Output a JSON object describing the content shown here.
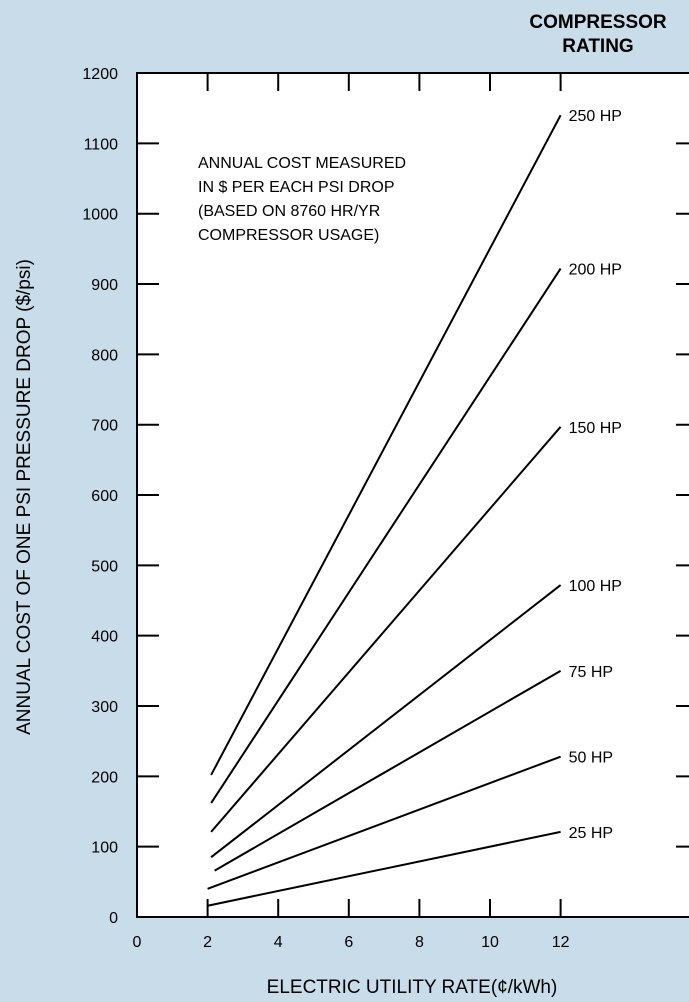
{
  "chart_data": {
    "type": "line",
    "header": [
      "COMPRESSOR",
      "RATING"
    ],
    "annotation": [
      "ANNUAL COST MEASURED",
      "IN $ PER EACH PSI DROP",
      "(BASED ON 8760 HR/YR",
      "COMPRESSOR USAGE)"
    ],
    "xlabel": "ELECTRIC UTILITY RATE(¢/kWh)",
    "ylabel": "ANNUAL COST OF ONE PSI PRESSURE DROP ($/psi)",
    "xlim": [
      0,
      16
    ],
    "ylim": [
      0,
      1200
    ],
    "xticks": [
      0,
      2,
      4,
      6,
      8,
      10,
      12
    ],
    "yticks": [
      0,
      100,
      200,
      300,
      400,
      500,
      600,
      700,
      800,
      900,
      1000,
      1100,
      1200
    ],
    "grid": false,
    "legend": "line-end labels",
    "series": [
      {
        "name": "250 HP",
        "x": [
          2.1,
          12.0
        ],
        "y": [
          202,
          1140
        ]
      },
      {
        "name": "200 HP",
        "x": [
          2.1,
          12.0
        ],
        "y": [
          162,
          922
        ]
      },
      {
        "name": "150 HP",
        "x": [
          2.1,
          12.0
        ],
        "y": [
          121,
          697
        ]
      },
      {
        "name": "100 HP",
        "x": [
          2.1,
          12.0
        ],
        "y": [
          85,
          472
        ]
      },
      {
        "name": "75 HP",
        "x": [
          2.2,
          12.0
        ],
        "y": [
          66,
          350
        ]
      },
      {
        "name": "50 HP",
        "x": [
          2.0,
          12.0
        ],
        "y": [
          40,
          228
        ]
      },
      {
        "name": "25 HP",
        "x": [
          2.0,
          12.0
        ],
        "y": [
          16,
          121
        ]
      }
    ]
  }
}
